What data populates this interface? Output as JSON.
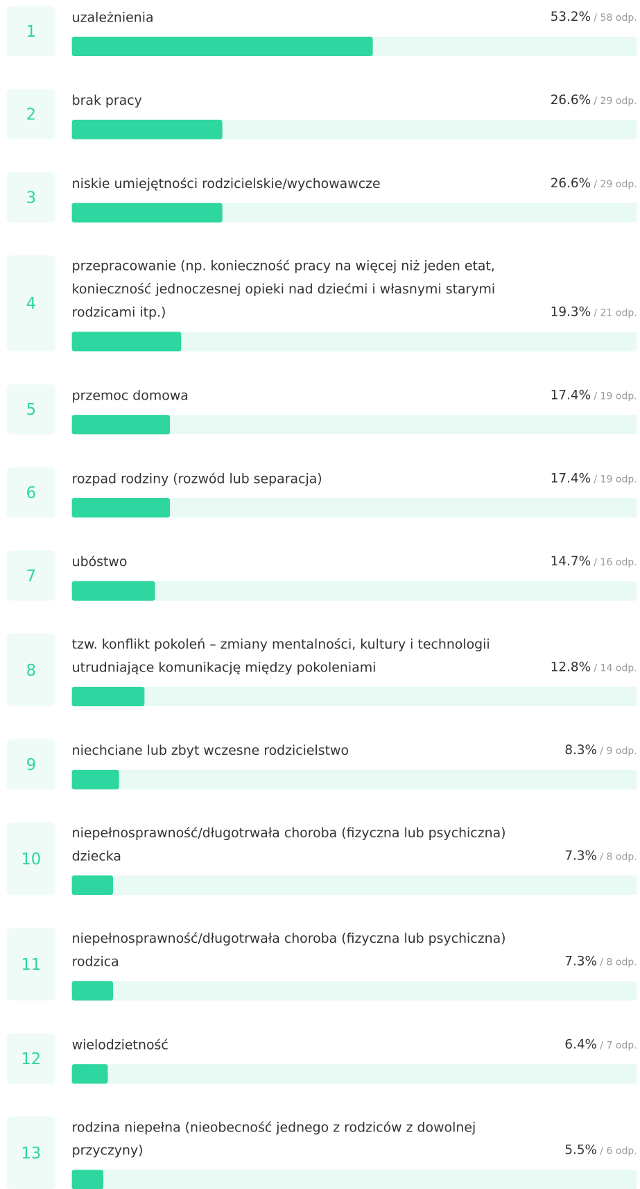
{
  "chart_data": {
    "type": "bar",
    "ranks": [
      1,
      2,
      3,
      4,
      5,
      6,
      7,
      8,
      9,
      10,
      11,
      12,
      13
    ],
    "categories": [
      "uzależnienia",
      "brak pracy",
      "niskie umiejętności rodzicielskie/wychowawcze",
      "przepracowanie (np. konieczność pracy na więcej niż jeden etat, konieczność jednoczesnej opieki nad dziećmi i własnymi starymi rodzicami itp.)",
      "przemoc domowa",
      "rozpad rodziny (rozwód lub separacja)",
      "ubóstwo",
      "tzw. konflikt pokoleń – zmiany mentalności, kultury i technologii utrudniające komunikację między pokoleniami",
      "niechciane lub zbyt wczesne rodzicielstwo",
      "niepełnosprawność/długotrwała choroba (fizyczna lub psychiczna) dziecka",
      "niepełnosprawność/długotrwała choroba (fizyczna lub psychiczna) rodzica",
      "wielodzietność",
      "rodzina niepełna (nieobecność jednego z rodziców z dowolnej przyczyny)"
    ],
    "values": [
      53.2,
      26.6,
      26.6,
      19.3,
      17.4,
      17.4,
      14.7,
      12.8,
      8.3,
      7.3,
      7.3,
      6.4,
      5.5
    ],
    "value_labels": [
      "53.2%",
      "26.6%",
      "26.6%",
      "19.3%",
      "17.4%",
      "17.4%",
      "14.7%",
      "12.8%",
      "8.3%",
      "7.3%",
      "7.3%",
      "6.4%",
      "5.5%"
    ],
    "counts": [
      "/ 58 odp.",
      "/ 29 odp.",
      "/ 29 odp.",
      "/ 21 odp.",
      "/ 19 odp.",
      "/ 19 odp.",
      "/ 16 odp.",
      "/ 14 odp.",
      "/ 9 odp.",
      "/ 8 odp.",
      "/ 8 odp.",
      "/ 7 odp.",
      "/ 6 odp."
    ],
    "xlim": [
      0,
      100
    ],
    "color": "#2ed6a0"
  }
}
